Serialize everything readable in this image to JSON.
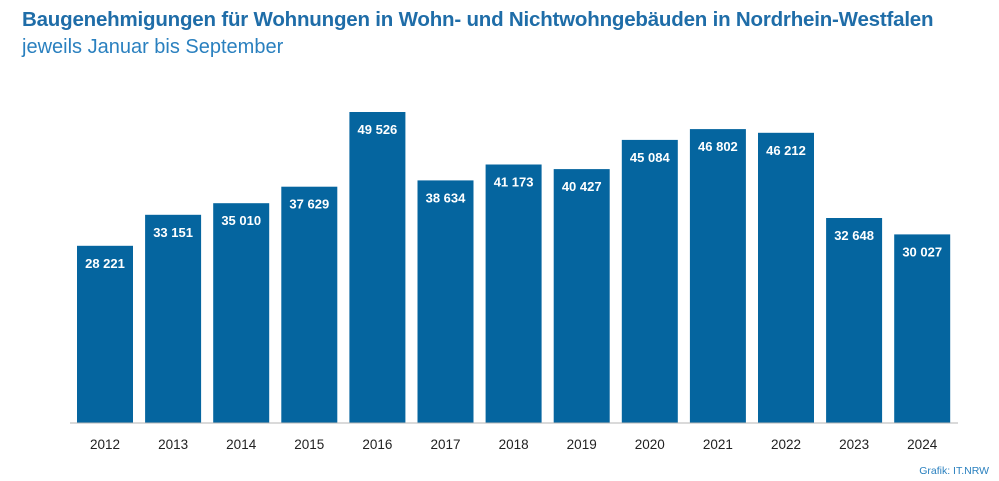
{
  "chart_data": {
    "type": "bar",
    "title": "Baugenehmigungen für Wohnungen in Wohn- und Nichtwohngebäuden in Nordrhein-Westfalen",
    "subtitle": "jeweils Januar bis September",
    "xlabel": "",
    "ylabel": "",
    "ylim": [
      0,
      50000
    ],
    "categories": [
      "2012",
      "2013",
      "2014",
      "2015",
      "2016",
      "2017",
      "2018",
      "2019",
      "2020",
      "2021",
      "2022",
      "2023",
      "2024"
    ],
    "values": [
      28221,
      33151,
      35010,
      37629,
      49526,
      38634,
      41173,
      40427,
      45084,
      46802,
      46212,
      32648,
      30027
    ],
    "value_labels": [
      "28 221",
      "33 151",
      "35 010",
      "37 629",
      "49 526",
      "38 634",
      "41 173",
      "40 427",
      "45 084",
      "46 802",
      "46 212",
      "32 648",
      "30 027"
    ],
    "bar_color": "#05659f",
    "grid": false,
    "source": "Grafik: IT.NRW"
  }
}
